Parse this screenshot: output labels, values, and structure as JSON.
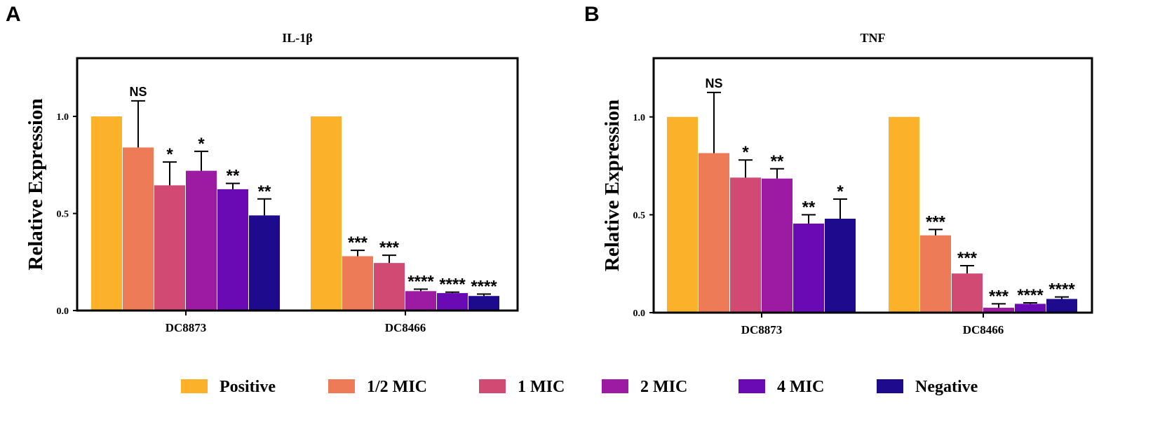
{
  "panels": [
    {
      "letter": "A"
    },
    {
      "letter": "B"
    }
  ],
  "series_colors": [
    "#FBB12A",
    "#EE7B57",
    "#D04A73",
    "#9D1AA3",
    "#6A0AB5",
    "#1E0A8C"
  ],
  "chart_data": [
    {
      "type": "bar",
      "title": "IL-1β",
      "xlabel": "",
      "ylabel": "Relative Expression",
      "ylim": [
        0,
        1.3
      ],
      "yticks": [
        0.0,
        0.5,
        1.0
      ],
      "ytick_labels": [
        "0.0",
        "0.5",
        "1.0"
      ],
      "categories": [
        "DC8873",
        "DC8466"
      ],
      "legend_position": "bottom",
      "series": [
        {
          "name": "Positive",
          "values": [
            1.0,
            1.0
          ],
          "errors": [
            0,
            0
          ],
          "significance": [
            "",
            ""
          ]
        },
        {
          "name": "1/2 MIC",
          "values": [
            0.84,
            0.28
          ],
          "errors": [
            0.24,
            0.03
          ],
          "significance": [
            "NS",
            "***"
          ]
        },
        {
          "name": "1 MIC",
          "values": [
            0.645,
            0.245
          ],
          "errors": [
            0.12,
            0.04
          ],
          "significance": [
            "*",
            "***"
          ]
        },
        {
          "name": "2 MIC",
          "values": [
            0.72,
            0.1
          ],
          "errors": [
            0.1,
            0.01
          ],
          "significance": [
            "*",
            "****"
          ]
        },
        {
          "name": "4 MIC",
          "values": [
            0.625,
            0.09
          ],
          "errors": [
            0.03,
            0.005
          ],
          "significance": [
            "**",
            "****"
          ]
        },
        {
          "name": "Negative",
          "values": [
            0.49,
            0.075
          ],
          "errors": [
            0.085,
            0.01
          ],
          "significance": [
            "**",
            "****"
          ]
        }
      ]
    },
    {
      "type": "bar",
      "title": "TNF",
      "xlabel": "",
      "ylabel": "Relative Expression",
      "ylim": [
        0,
        1.3
      ],
      "yticks": [
        0.0,
        0.5,
        1.0
      ],
      "ytick_labels": [
        "0.0",
        "0.5",
        "1.0"
      ],
      "categories": [
        "DC8873",
        "DC8466"
      ],
      "legend_position": "bottom",
      "series": [
        {
          "name": "Positive",
          "values": [
            1.0,
            1.0
          ],
          "errors": [
            0,
            0
          ],
          "significance": [
            "",
            ""
          ]
        },
        {
          "name": "1/2 MIC",
          "values": [
            0.815,
            0.395
          ],
          "errors": [
            0.31,
            0.03
          ],
          "significance": [
            "NS",
            "***"
          ]
        },
        {
          "name": "1 MIC",
          "values": [
            0.69,
            0.2
          ],
          "errors": [
            0.09,
            0.04
          ],
          "significance": [
            "*",
            "***"
          ]
        },
        {
          "name": "2 MIC",
          "values": [
            0.685,
            0.025
          ],
          "errors": [
            0.05,
            0.02
          ],
          "significance": [
            "**",
            "***"
          ]
        },
        {
          "name": "4 MIC",
          "values": [
            0.455,
            0.045
          ],
          "errors": [
            0.045,
            0.005
          ],
          "significance": [
            "**",
            "****"
          ]
        },
        {
          "name": "Negative",
          "values": [
            0.48,
            0.07
          ],
          "errors": [
            0.1,
            0.01
          ],
          "significance": [
            "*",
            "****"
          ]
        }
      ]
    }
  ],
  "legend": {
    "items": [
      "Positive",
      "1/2 MIC",
      "1 MIC",
      "2 MIC",
      "4 MIC",
      "Negative"
    ]
  }
}
